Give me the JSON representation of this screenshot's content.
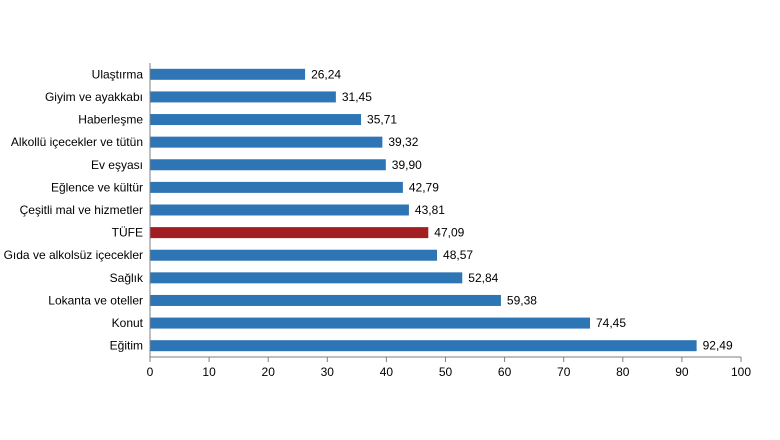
{
  "chart_data": {
    "type": "bar",
    "orientation": "horizontal",
    "title": "",
    "xlabel": "",
    "ylabel": "",
    "xlim": [
      0,
      100
    ],
    "xticks": [
      0,
      10,
      20,
      30,
      40,
      50,
      60,
      70,
      80,
      90,
      100
    ],
    "grid": false,
    "legend": "none",
    "colors": {
      "default": "#2e75b6",
      "highlight": "#a31e22"
    },
    "highlight_category": "TÜFE",
    "categories": [
      "Ulaştırma",
      "Giyim ve ayakkabı",
      "Haberleşme",
      "Alkollü içecekler ve tütün",
      "Ev eşyası",
      "Eğlence ve kültür",
      "Çeşitli mal ve hizmetler",
      "TÜFE",
      "Gıda ve alkolsüz içecekler",
      "Sağlık",
      "Lokanta ve oteller",
      "Konut",
      "Eğitim"
    ],
    "values": [
      26.24,
      31.45,
      35.71,
      39.32,
      39.9,
      42.79,
      43.81,
      47.09,
      48.57,
      52.84,
      59.38,
      74.45,
      92.49
    ],
    "value_labels": [
      "26,24",
      "31,45",
      "35,71",
      "39,32",
      "39,90",
      "42,79",
      "43,81",
      "47,09",
      "48,57",
      "52,84",
      "59,38",
      "74,45",
      "92,49"
    ]
  }
}
